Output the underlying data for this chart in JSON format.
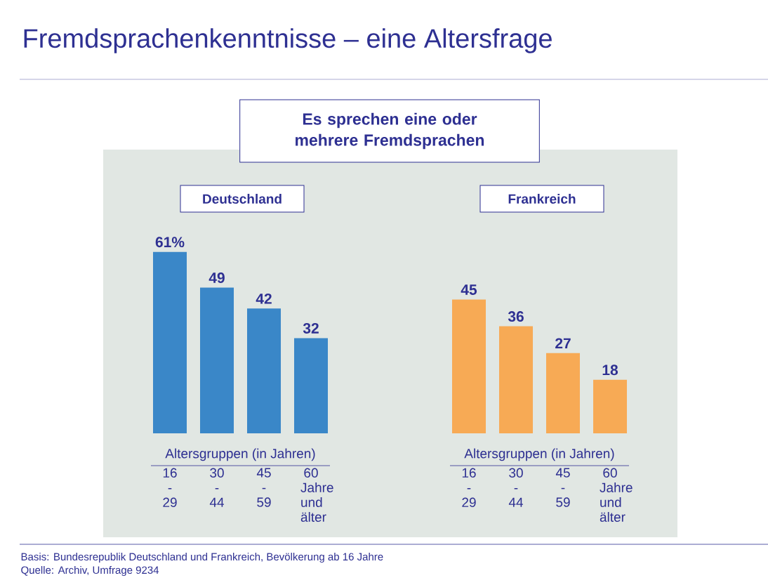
{
  "chart_data": [
    {
      "type": "bar",
      "title": "Fremdsprachenkenntnisse – eine Altersfrage",
      "subtitle": "Es sprechen eine oder mehrere Fremdsprachen",
      "xlabel": "Altersgruppen (in Jahren)",
      "categories": [
        "16 - 29",
        "30 - 44",
        "45 - 59",
        "60 Jahre und älter"
      ],
      "series": [
        {
          "name": "Deutschland",
          "color": "#3a87c8",
          "values": [
            61,
            49,
            42,
            32
          ],
          "value_labels": [
            "61%",
            "49",
            "42",
            "32"
          ]
        }
      ],
      "annotations": [
        "Basis: Bundesrepublik Deutschland und Frankreich, Bevölkerung ab 16 Jahre",
        "Quelle: Archiv, Umfrage 9234"
      ]
    },
    {
      "type": "bar",
      "xlabel": "Altersgruppen (in Jahren)",
      "categories": [
        "16 - 29",
        "30 - 44",
        "45 - 59",
        "60 Jahre und älter"
      ],
      "series": [
        {
          "name": "Frankreich",
          "color": "#f7aa55",
          "values": [
            45,
            36,
            27,
            18
          ],
          "value_labels": [
            "45",
            "36",
            "27",
            "18"
          ]
        }
      ]
    }
  ]
}
